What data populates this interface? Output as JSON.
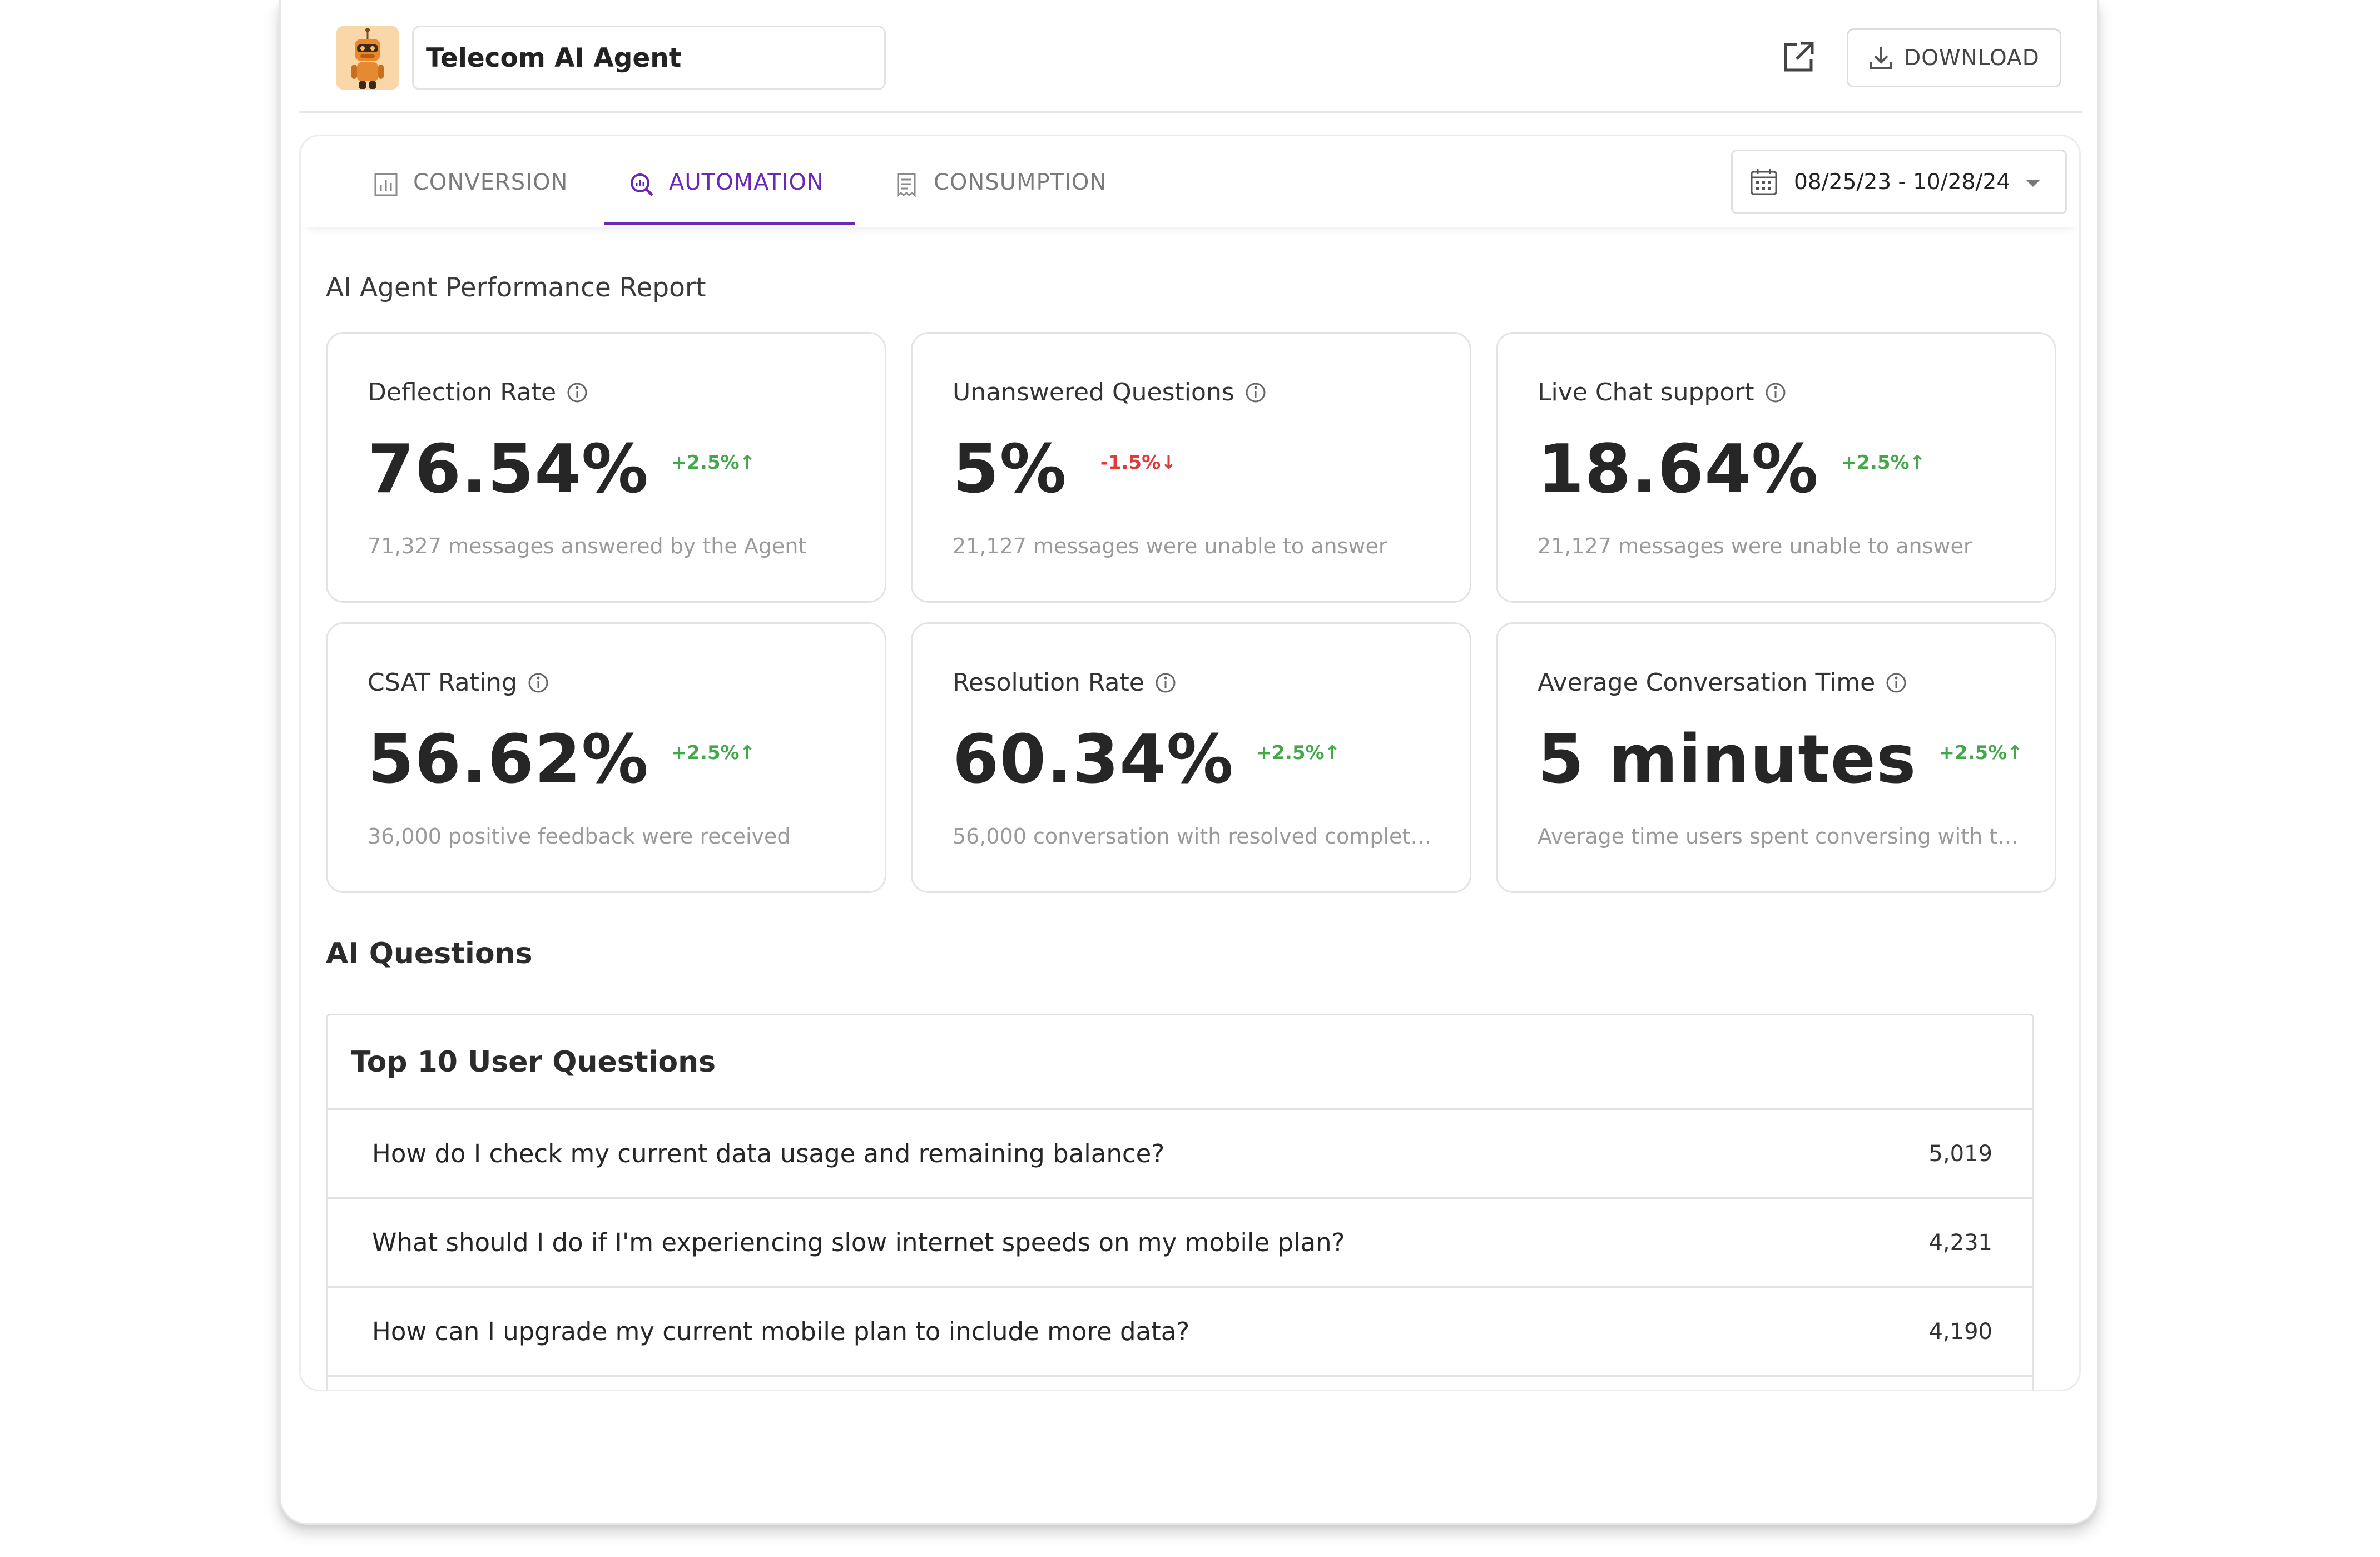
{
  "header": {
    "title": "Telecom AI Agent",
    "download_label": "DOWNLOAD"
  },
  "tabs": [
    {
      "label": "CONVERSION",
      "icon": "bar-chart-icon",
      "active": false
    },
    {
      "label": "AUTOMATION",
      "icon": "analytics-search-icon",
      "active": true
    },
    {
      "label": "CONSUMPTION",
      "icon": "receipt-icon",
      "active": false
    }
  ],
  "date_range": "08/25/23 - 10/28/24",
  "report_title": "AI Agent Performance Report",
  "metrics": [
    {
      "title": "Deflection Rate",
      "value": "76.54%",
      "delta": "+2.5%",
      "trend": "up",
      "sub": "71,327 messages answered by the Agent"
    },
    {
      "title": "Unanswered Questions",
      "value": "5%",
      "delta": "-1.5%",
      "trend": "down",
      "sub": "21,127 messages were unable to answer"
    },
    {
      "title": "Live Chat support",
      "value": "18.64%",
      "delta": "+2.5%",
      "trend": "up",
      "sub": "21,127 messages were unable to answer"
    },
    {
      "title": "CSAT Rating",
      "value": "56.62%",
      "delta": "+2.5%",
      "trend": "up",
      "sub": "36,000 positive feedback were received"
    },
    {
      "title": "Resolution Rate",
      "value": "60.34%",
      "delta": "+2.5%",
      "trend": "up",
      "sub": "56,000 conversation with resolved completel..."
    },
    {
      "title": "Average Conversation Time",
      "value": "5 minutes",
      "delta": "+2.5%",
      "trend": "up",
      "sub": "Average time users spent conversing with th..."
    }
  ],
  "ai_questions": {
    "section_title": "AI Questions",
    "table_title": "Top 10 User Questions",
    "rows": [
      {
        "question": "How do I check my current data usage and remaining balance?",
        "count": "5,019"
      },
      {
        "question": "What should I do if I'm experiencing slow internet speeds on my mobile plan?",
        "count": "4,231"
      },
      {
        "question": "How can I upgrade my current mobile plan to include more data?",
        "count": "4,190"
      }
    ]
  },
  "colors": {
    "accent": "#6b28b8",
    "positive": "#43a84a",
    "negative": "#e03a3a"
  }
}
